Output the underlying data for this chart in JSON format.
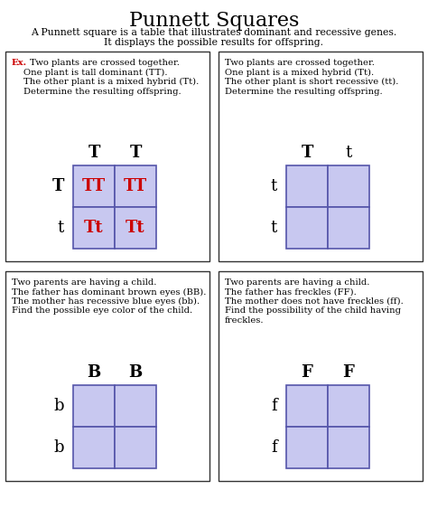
{
  "title": "Punnett Squares",
  "subtitle1": "A Punnett square is a table that illustrates dominant and recessive genes.",
  "subtitle2": "It displays the possible results for offspring.",
  "box_bg": "#c8c8f0",
  "box_border": "#5555aa",
  "panel_border": "#333333",
  "title_fontsize": 16,
  "subtitle_fontsize": 7.8,
  "text_fontsize": 7.2,
  "header_fontsize": 13,
  "cell_fontsize": 13,
  "panels": [
    {
      "text_lines": [
        "Two plants are crossed together.",
        "One plant is tall dominant (TT).",
        "The other plant is a mixed hybrid (Tt).",
        "Determine the resulting offspring."
      ],
      "col_headers": [
        "T",
        "T"
      ],
      "row_headers": [
        "T",
        "t"
      ],
      "col_header_bold": [
        true,
        true
      ],
      "row_header_bold": [
        true,
        false
      ],
      "cells": [
        [
          "TT",
          "TT"
        ],
        [
          "Tt",
          "Tt"
        ]
      ],
      "cell_colors": [
        [
          "#cc0000",
          "#cc0000"
        ],
        [
          "#cc0000",
          "#cc0000"
        ]
      ],
      "cell_bold": [
        [
          true,
          true
        ],
        [
          true,
          true
        ]
      ],
      "has_ex": true
    },
    {
      "text_lines": [
        "Two plants are crossed together.",
        "One plant is a mixed hybrid (Tt).",
        "The other plant is short recessive (tt).",
        "Determine the resulting offspring."
      ],
      "col_headers": [
        "T",
        "t"
      ],
      "row_headers": [
        "t",
        "t"
      ],
      "col_header_bold": [
        true,
        false
      ],
      "row_header_bold": [
        false,
        false
      ],
      "cells": [
        [
          "",
          ""
        ],
        [
          "",
          ""
        ]
      ],
      "cell_colors": [
        [
          "#000000",
          "#000000"
        ],
        [
          "#000000",
          "#000000"
        ]
      ],
      "cell_bold": [
        [
          false,
          false
        ],
        [
          false,
          false
        ]
      ],
      "has_ex": false
    },
    {
      "text_lines": [
        "Two parents are having a child.",
        "The father has dominant brown eyes (BB).",
        "The mother has recessive blue eyes (bb).",
        "Find the possible eye color of the child."
      ],
      "col_headers": [
        "B",
        "B"
      ],
      "row_headers": [
        "b",
        "b"
      ],
      "col_header_bold": [
        true,
        true
      ],
      "row_header_bold": [
        false,
        false
      ],
      "cells": [
        [
          "",
          ""
        ],
        [
          "",
          ""
        ]
      ],
      "cell_colors": [
        [
          "#000000",
          "#000000"
        ],
        [
          "#000000",
          "#000000"
        ]
      ],
      "cell_bold": [
        [
          false,
          false
        ],
        [
          false,
          false
        ]
      ],
      "has_ex": false
    },
    {
      "text_lines": [
        "Two parents are having a child.",
        "The father has freckles (FF).",
        "The mother does not have freckles (ff).",
        "Find the possibility of the child having",
        "freckles."
      ],
      "col_headers": [
        "F",
        "F"
      ],
      "row_headers": [
        "f",
        "f"
      ],
      "col_header_bold": [
        true,
        true
      ],
      "row_header_bold": [
        false,
        false
      ],
      "cells": [
        [
          "",
          ""
        ],
        [
          "",
          ""
        ]
      ],
      "cell_colors": [
        [
          "#000000",
          "#000000"
        ],
        [
          "#000000",
          "#000000"
        ]
      ],
      "cell_bold": [
        [
          false,
          false
        ],
        [
          false,
          false
        ]
      ],
      "has_ex": false
    }
  ]
}
